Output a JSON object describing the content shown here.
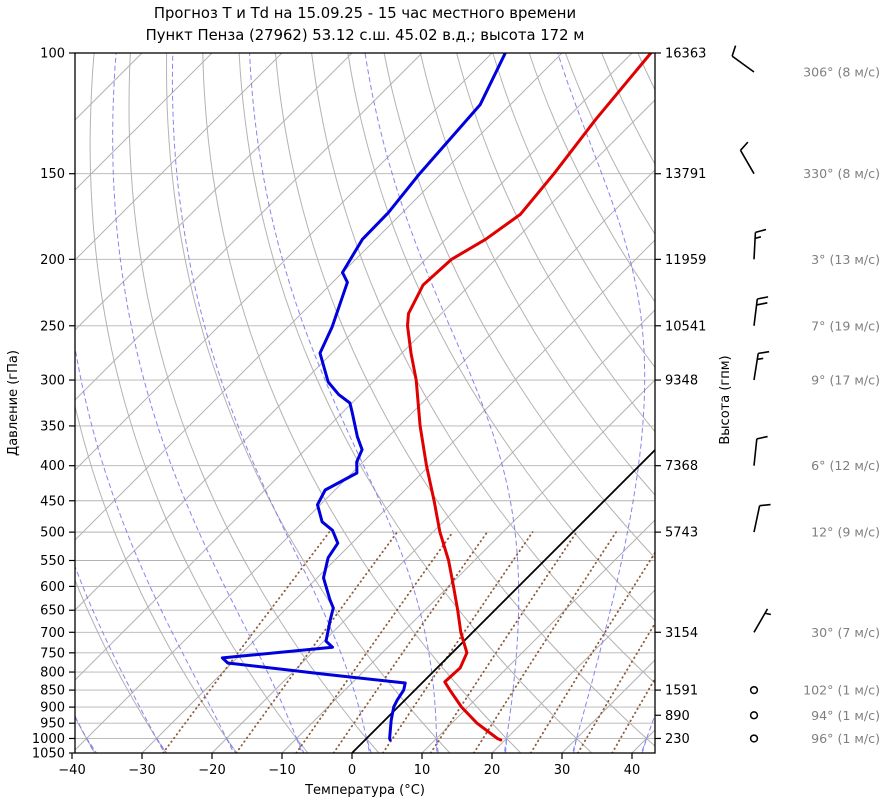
{
  "title": {
    "line1": "Прогноз Т и Td на 15.09.25 - 15 час местного времени",
    "line2": "Пункт Пенза (27962) 53.12 с.ш. 45.02 в.д.; высота 172 м"
  },
  "axes": {
    "x": {
      "label": "Температура (°C)",
      "ticks": [
        -40,
        -30,
        -20,
        -10,
        0,
        10,
        20,
        30,
        40
      ],
      "min_c": -40,
      "max_c": 43
    },
    "y_left": {
      "label": "Давление (гПа)",
      "ticks": [
        100,
        150,
        200,
        250,
        300,
        350,
        400,
        450,
        500,
        550,
        600,
        650,
        700,
        750,
        800,
        850,
        900,
        950,
        1000,
        1050
      ],
      "min_hpa": 100,
      "max_hpa": 1050,
      "scale": "log"
    },
    "y_right": {
      "label": "Высота (гпм)",
      "ticks": [
        {
          "p": 100,
          "label": "16363"
        },
        {
          "p": 150,
          "label": "13791"
        },
        {
          "p": 200,
          "label": "11959"
        },
        {
          "p": 250,
          "label": "10541"
        },
        {
          "p": 300,
          "label": "9348"
        },
        {
          "p": 400,
          "label": "7368"
        },
        {
          "p": 500,
          "label": "5743"
        },
        {
          "p": 700,
          "label": "3154"
        },
        {
          "p": 850,
          "label": "1591"
        },
        {
          "p": 925,
          "label": "890"
        },
        {
          "p": 1000,
          "label": "230"
        }
      ]
    }
  },
  "chart_data": {
    "type": "line",
    "diagram": "skew-T log-p aerological diagram",
    "title": "Прогноз Т и Td на 15.09.25 - 15 час местного времени",
    "subtitle": "Пункт Пенза (27962) 53.12 с.ш. 45.02 в.д.; высота 172 м",
    "xlabel": "Температура (°C)",
    "ylabel_left": "Давление (гПа)",
    "ylabel_right": "Высота (гпм)",
    "xlim_c": [
      -40,
      43
    ],
    "plim_hpa": [
      100,
      1050
    ],
    "skew_deg": 45,
    "series": [
      {
        "name": "temperature",
        "color": "#e00000",
        "points_p_hpa_t_c": [
          [
            100,
            -57.3
          ],
          [
            125,
            -55.7
          ],
          [
            150,
            -53.9
          ],
          [
            172,
            -52.9
          ],
          [
            187,
            -54.3
          ],
          [
            200,
            -56.3
          ],
          [
            218,
            -56.7
          ],
          [
            240,
            -54.7
          ],
          [
            250,
            -53.1
          ],
          [
            274,
            -48.7
          ],
          [
            300,
            -44.1
          ],
          [
            350,
            -37.0
          ],
          [
            400,
            -30.4
          ],
          [
            450,
            -24.3
          ],
          [
            500,
            -19.0
          ],
          [
            550,
            -13.7
          ],
          [
            600,
            -9.3
          ],
          [
            650,
            -5.3
          ],
          [
            700,
            -1.7
          ],
          [
            750,
            2.1
          ],
          [
            789,
            3.3
          ],
          [
            827,
            3.1
          ],
          [
            850,
            5.0
          ],
          [
            900,
            9.1
          ],
          [
            950,
            13.6
          ],
          [
            1000,
            18.7
          ],
          [
            1005,
            19.4
          ]
        ]
      },
      {
        "name": "dewpoint",
        "color": "#0000dd",
        "points_p_hpa_t_c": [
          [
            100,
            -78.1
          ],
          [
            119,
            -74.3
          ],
          [
            150,
            -73.1
          ],
          [
            171,
            -72.0
          ],
          [
            187,
            -71.9
          ],
          [
            209,
            -70.0
          ],
          [
            216,
            -67.9
          ],
          [
            251,
            -63.7
          ],
          [
            274,
            -61.7
          ],
          [
            302,
            -56.4
          ],
          [
            315,
            -53.1
          ],
          [
            324,
            -50.3
          ],
          [
            334,
            -48.7
          ],
          [
            363,
            -44.4
          ],
          [
            379,
            -41.9
          ],
          [
            395,
            -40.9
          ],
          [
            410,
            -39.3
          ],
          [
            434,
            -41.4
          ],
          [
            456,
            -40.4
          ],
          [
            483,
            -37.3
          ],
          [
            497,
            -34.6
          ],
          [
            519,
            -32.0
          ],
          [
            545,
            -31.3
          ],
          [
            583,
            -29.1
          ],
          [
            628,
            -25.0
          ],
          [
            645,
            -23.4
          ],
          [
            672,
            -22.1
          ],
          [
            700,
            -20.7
          ],
          [
            721,
            -19.7
          ],
          [
            736,
            -17.9
          ],
          [
            763,
            -32.1
          ],
          [
            776,
            -30.6
          ],
          [
            806,
            -15.1
          ],
          [
            830,
            -2.4
          ],
          [
            850,
            -1.6
          ],
          [
            879,
            -1.1
          ],
          [
            900,
            -0.6
          ],
          [
            940,
            0.9
          ],
          [
            1000,
            3.3
          ],
          [
            1005,
            3.6
          ]
        ]
      }
    ],
    "wind_barbs": [
      {
        "p": 100,
        "dir_deg": 306,
        "speed_ms": 8,
        "label": "306° (8 м/с)"
      },
      {
        "p": 150,
        "dir_deg": 330,
        "speed_ms": 8,
        "label": "330° (8 м/с)"
      },
      {
        "p": 200,
        "dir_deg": 3,
        "speed_ms": 13,
        "label": "3° (13 м/с)"
      },
      {
        "p": 250,
        "dir_deg": 7,
        "speed_ms": 19,
        "label": "7° (19 м/с)"
      },
      {
        "p": 300,
        "dir_deg": 9,
        "speed_ms": 17,
        "label": "9° (17 м/с)"
      },
      {
        "p": 400,
        "dir_deg": 6,
        "speed_ms": 12,
        "label": "6° (12 м/с)"
      },
      {
        "p": 500,
        "dir_deg": 12,
        "speed_ms": 9,
        "label": "12° (9 м/с)"
      },
      {
        "p": 700,
        "dir_deg": 30,
        "speed_ms": 7,
        "label": "30° (7 м/с)"
      },
      {
        "p": 850,
        "dir_deg": 102,
        "speed_ms": 1,
        "label": "102° (1 м/с)"
      },
      {
        "p": 925,
        "dir_deg": 94,
        "speed_ms": 1,
        "label": "94° (1 м/с)"
      },
      {
        "p": 1000,
        "dir_deg": 96,
        "speed_ms": 1,
        "label": "96° (1 м/с)"
      }
    ],
    "grid": {
      "isotherms_c": {
        "min": -140,
        "max": 40,
        "step": 10
      },
      "dry_adiabats_theta_c": {
        "min": -40,
        "max": 150,
        "step": 10
      },
      "moist_adiabats_t1000_c": {
        "min": -40,
        "max": 40,
        "step": 10
      },
      "mixing_ratio_g_kg": [
        0.4,
        1,
        2,
        3,
        5,
        8,
        12,
        20,
        30,
        40
      ],
      "mixing_ratio_top_hpa": 500,
      "zero_isotherm_highlighted": true
    },
    "colors": {
      "temperature": "#e00000",
      "dewpoint": "#0000dd",
      "isotherm": "#b3b3b3",
      "dry_adiabat": "#b3b3b3",
      "moist_adiabat": "#7878ee",
      "mixing_ratio": "#8f5b3c",
      "zero_isotherm": "#000000",
      "pressure_gridline": "#b3b3b3",
      "barb_label": "#7f7f7f"
    }
  }
}
